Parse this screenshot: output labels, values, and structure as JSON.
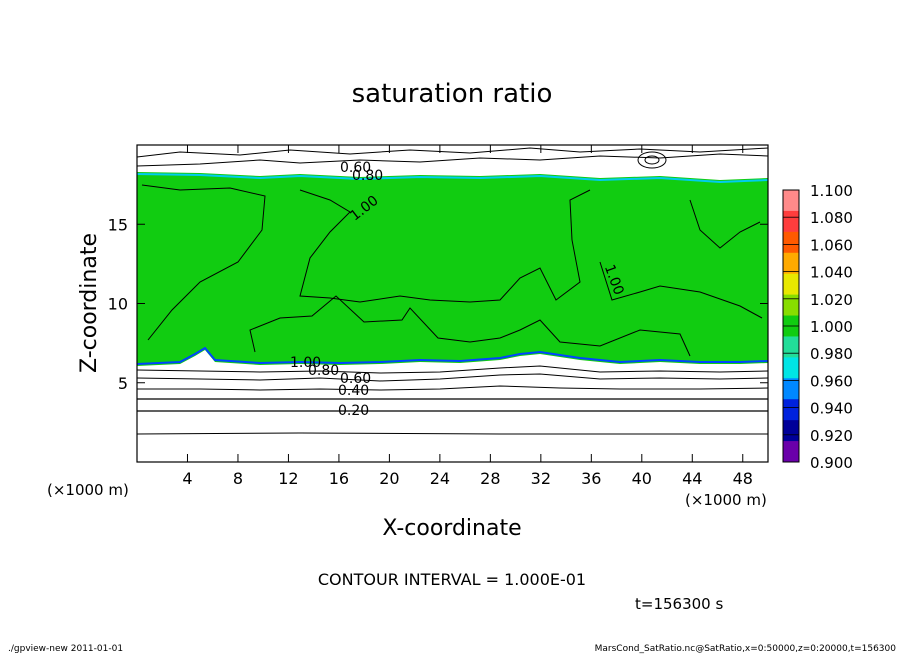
{
  "chart_data": {
    "type": "heatmap",
    "title": "saturation ratio",
    "xlabel": "X-coordinate",
    "ylabel": "Z-coordinate",
    "x_unit": "(×1000 m)",
    "y_unit": "(×1000 m)",
    "xlim": [
      0,
      50
    ],
    "ylim": [
      0,
      20
    ],
    "x_ticks": [
      4,
      8,
      12,
      16,
      20,
      24,
      28,
      32,
      36,
      40,
      44,
      48
    ],
    "y_ticks": [
      5,
      10,
      15
    ],
    "contour_interval_text": "CONTOUR INTERVAL = 1.000E-01",
    "time_text": "t=156300 s",
    "contour_labels": [
      "0.60",
      "0.80",
      "1.00",
      "1.00",
      "1.00",
      "0.80",
      "0.60",
      "0.40",
      "0.20"
    ],
    "colorbar": {
      "levels": [
        "1.100",
        "1.080",
        "1.060",
        "1.040",
        "1.020",
        "1.000",
        "0.980",
        "0.960",
        "0.940",
        "0.920",
        "0.900"
      ],
      "colors": [
        "#ff8a8a",
        "#ff3d3d",
        "#ff5a00",
        "#ffaa00",
        "#e8e800",
        "#88dd00",
        "#11cc11",
        "#22dd99",
        "#00e5e5",
        "#0088ff",
        "#0022dd",
        "#000099",
        "#6a00aa"
      ]
    },
    "field_summary": {
      "saturated_layer_z_range": [
        6,
        18
      ],
      "saturated_value": 1.0
    }
  },
  "footer": {
    "left": "./gpview-new   2011-01-01",
    "right": "MarsCond_SatRatio.nc@SatRatio,x=0:50000,z=0:20000,t=156300"
  }
}
